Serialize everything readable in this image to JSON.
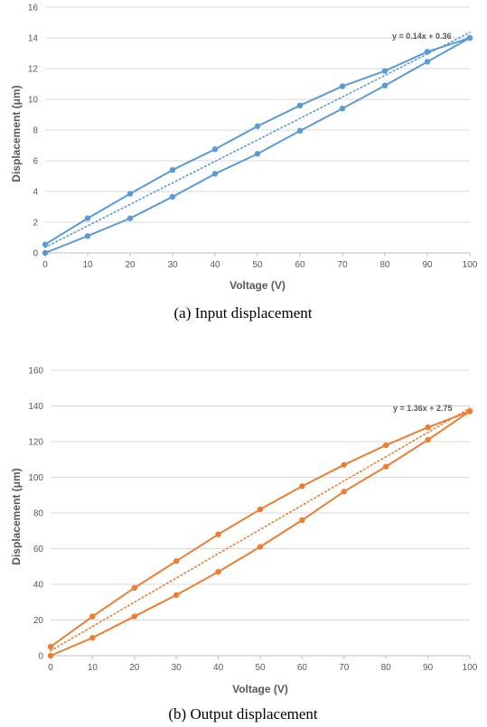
{
  "chart_data": [
    {
      "type": "line",
      "caption": "(a) Input displacement",
      "xlabel": "Voltage (V)",
      "ylabel": "Displacement (μm)",
      "xlim": [
        0,
        100
      ],
      "ylim": [
        0,
        16
      ],
      "x_ticks": [
        "0",
        "10",
        "20",
        "30",
        "40",
        "50",
        "60",
        "70",
        "80",
        "90",
        "100"
      ],
      "y_ticks": [
        "0",
        "2",
        "4",
        "6",
        "8",
        "10",
        "12",
        "14",
        "16"
      ],
      "grid": "horizontal",
      "color": "#5B9BD5",
      "trendline_label": "y = 0.14x + 0.36",
      "trendline": {
        "slope": 0.14,
        "intercept": 0.36
      },
      "series": [
        {
          "x": [
            0,
            10,
            20,
            30,
            40,
            50,
            60,
            70,
            80,
            90,
            100
          ],
          "values": [
            0.0,
            1.1,
            2.25,
            3.65,
            5.15,
            6.45,
            7.95,
            9.4,
            10.9,
            12.45,
            14.0
          ]
        },
        {
          "x": [
            100,
            90,
            80,
            70,
            60,
            50,
            40,
            30,
            20,
            10,
            0
          ],
          "values": [
            14.0,
            13.1,
            11.85,
            10.85,
            9.6,
            8.25,
            6.75,
            5.4,
            3.85,
            2.25,
            0.55
          ]
        }
      ]
    },
    {
      "type": "line",
      "caption": "(b) Output displacement",
      "xlabel": "Voltage (V)",
      "ylabel": "Displacement (μm)",
      "xlim": [
        0,
        100
      ],
      "ylim": [
        0,
        160
      ],
      "x_ticks": [
        "0",
        "10",
        "20",
        "30",
        "40",
        "50",
        "60",
        "70",
        "80",
        "90",
        "100"
      ],
      "y_ticks": [
        "0",
        "20",
        "40",
        "60",
        "80",
        "100",
        "120",
        "140",
        "160"
      ],
      "grid": "horizontal",
      "color": "#ED7D31",
      "trendline_label": "y = 1.36x + 2.75",
      "trendline": {
        "slope": 1.36,
        "intercept": 2.75
      },
      "series": [
        {
          "x": [
            0,
            10,
            20,
            30,
            40,
            50,
            60,
            70,
            80,
            90,
            100
          ],
          "values": [
            0,
            10,
            22,
            34,
            47,
            61,
            76,
            92,
            106,
            121,
            137
          ]
        },
        {
          "x": [
            100,
            90,
            80,
            70,
            60,
            50,
            40,
            30,
            20,
            10,
            0
          ],
          "values": [
            137,
            128,
            118,
            107,
            95,
            82,
            68,
            53,
            38,
            22,
            5
          ]
        }
      ]
    }
  ]
}
